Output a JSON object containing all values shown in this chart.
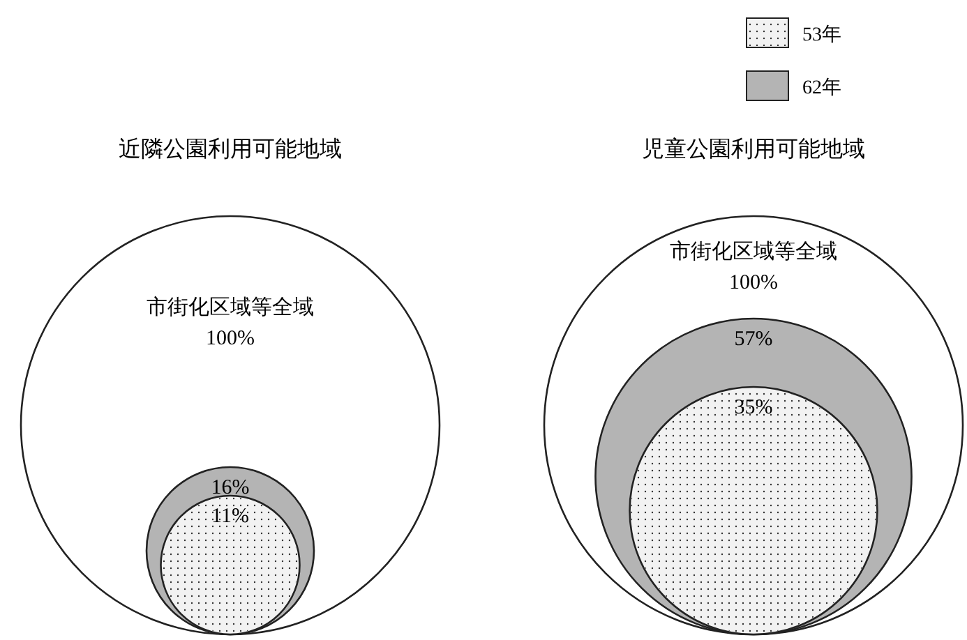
{
  "chart_data": {
    "type": "other",
    "categories": [
      "近隣公園利用可能地域",
      "児童公園利用可能地域"
    ],
    "annotations": [
      "市街化区域等全域",
      "市街化区域等全域"
    ],
    "legend": "top right",
    "series": [
      {
        "color": "#ffffff",
        "values": [
          100,
          100
        ],
        "value_labels": [
          "100%",
          "100%"
        ]
      },
      {
        "name": "62年",
        "color": "#b4b4b4",
        "values": [
          16,
          57
        ],
        "value_labels": [
          "16%",
          "57%"
        ]
      },
      {
        "name": "53年",
        "color": "#f2f2f2",
        "values": [
          11,
          35
        ],
        "value_labels": [
          "11%",
          "35%"
        ]
      }
    ]
  }
}
